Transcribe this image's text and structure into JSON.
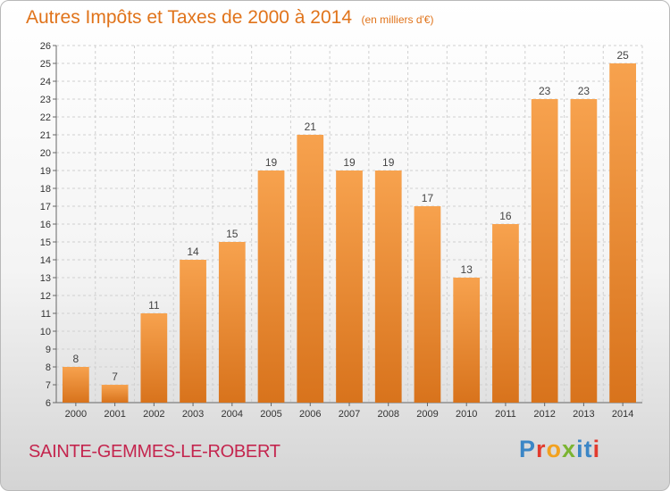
{
  "header": {
    "title": "Autres Impôts et Taxes de 2000 à 2014",
    "unit": "(en milliers d'€)"
  },
  "footer": {
    "city": "SAINTE-GEMMES-LE-ROBERT",
    "logo": "Proxiti"
  },
  "colors": {
    "bar_light": "#f7a24e",
    "bar_dark": "#d8731c",
    "title": "#e0731a",
    "city": "#c4254e",
    "grid": "#d0d0d0"
  },
  "chart_data": {
    "type": "bar",
    "title": "Autres Impôts et Taxes de 2000 à 2014",
    "subtitle": "(en milliers d'€)",
    "xlabel": "",
    "ylabel": "",
    "categories": [
      "2000",
      "2001",
      "2002",
      "2003",
      "2004",
      "2005",
      "2006",
      "2007",
      "2008",
      "2009",
      "2010",
      "2011",
      "2012",
      "2013",
      "2014"
    ],
    "values": [
      8,
      7,
      11,
      14,
      15,
      19,
      21,
      19,
      19,
      17,
      13,
      16,
      23,
      23,
      25
    ],
    "ylim": [
      6,
      26
    ],
    "yticks": [
      6,
      7,
      8,
      9,
      10,
      11,
      12,
      13,
      14,
      15,
      16,
      17,
      18,
      19,
      20,
      21,
      22,
      23,
      24,
      25,
      26
    ],
    "grid": true,
    "data_labels": true
  }
}
